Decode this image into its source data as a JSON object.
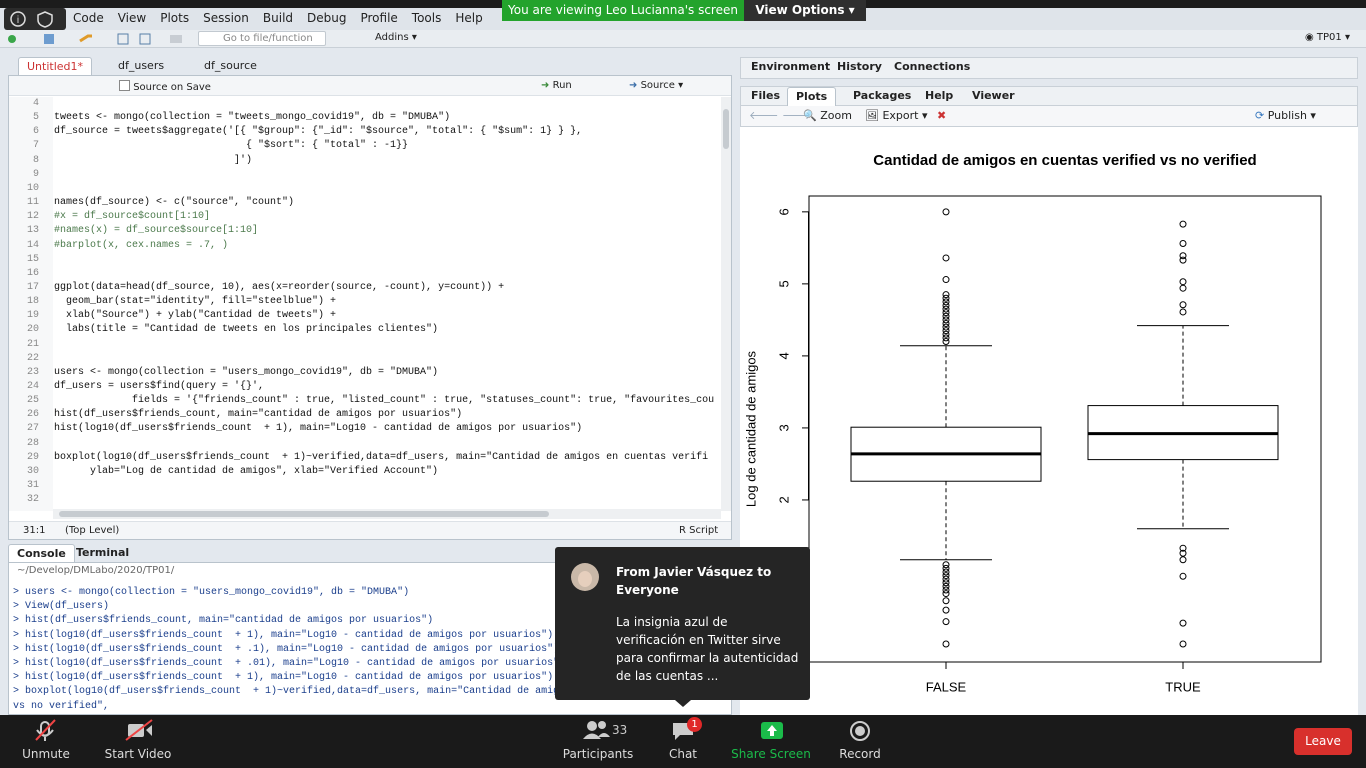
{
  "zoom_banner": {
    "viewing": "You are viewing Leo Lucianna's screen",
    "view_options": "View Options"
  },
  "menu": [
    "Code",
    "View",
    "Plots",
    "Session",
    "Build",
    "Debug",
    "Profile",
    "Tools",
    "Help"
  ],
  "toolbar": {
    "goto": "Go to file/function",
    "addins": "Addins",
    "project": "TP01"
  },
  "editor": {
    "tabs": [
      "Untitled1*",
      "df_users",
      "df_source"
    ],
    "source_on_save": "Source on Save",
    "run": "Run",
    "source": "Source",
    "lines": [
      {
        "number": 4
      },
      {
        "number": 5,
        "code": "tweets <- mongo(collection = \"tweets_mongo_covid19\", db = \"DMUBA\")"
      },
      {
        "number": 6,
        "code": "df_source = tweets$aggregate('[{ \"$group\": {\"_id\": \"$source\", \"total\": { \"$sum\": 1} } },"
      },
      {
        "number": 7,
        "code": "                                { \"$sort\": { \"total\" : -1}}"
      },
      {
        "number": 8,
        "code": "                              ]')"
      },
      {
        "number": 9
      },
      {
        "number": 10
      },
      {
        "number": 11,
        "code": "names(df_source) <- c(\"source\", \"count\")"
      },
      {
        "number": 12,
        "code": "#x = df_source$count[1:10]"
      },
      {
        "number": 13,
        "code": "#names(x) = df_source$source[1:10]"
      },
      {
        "number": 14,
        "code": "#barplot(x, cex.names = .7, )"
      },
      {
        "number": 15
      },
      {
        "number": 16
      },
      {
        "number": 17,
        "code": "ggplot(data=head(df_source, 10), aes(x=reorder(source, -count), y=count)) +"
      },
      {
        "number": 18,
        "code": "  geom_bar(stat=\"identity\", fill=\"steelblue\") +"
      },
      {
        "number": 19,
        "code": "  xlab(\"Source\") + ylab(\"Cantidad de tweets\") +"
      },
      {
        "number": 20,
        "code": "  labs(title = \"Cantidad de tweets en los principales clientes\")"
      },
      {
        "number": 21
      },
      {
        "number": 22
      },
      {
        "number": 23,
        "code": "users <- mongo(collection = \"users_mongo_covid19\", db = \"DMUBA\")"
      },
      {
        "number": 24,
        "code": "df_users = users$find(query = '{}',"
      },
      {
        "number": 25,
        "code": "             fields = '{\"friends_count\" : true, \"listed_count\" : true, \"statuses_count\": true, \"favourites_cou"
      },
      {
        "number": 26,
        "code": "hist(df_users$friends_count, main=\"cantidad de amigos por usuarios\")"
      },
      {
        "number": 27,
        "code": "hist(log10(df_users$friends_count  + 1), main=\"Log10 - cantidad de amigos por usuarios\")"
      },
      {
        "number": 28
      },
      {
        "number": 29,
        "code": "boxplot(log10(df_users$friends_count  + 1)~verified,data=df_users, main=\"Cantidad de amigos en cuentas verifi"
      },
      {
        "number": 30,
        "code": "      ylab=\"Log de cantidad de amigos\", xlab=\"Verified Account\")"
      },
      {
        "number": 31
      },
      {
        "number": 32
      }
    ],
    "status": {
      "position": "31:1",
      "scope": "(Top Level)",
      "type": "R Script"
    }
  },
  "console": {
    "tabs": [
      "Console",
      "Terminal"
    ],
    "path": "~/Develop/DMLabo/2020/TP01/",
    "lines": [
      "> users <- mongo(collection = \"users_mongo_covid19\", db = \"DMUBA\")",
      "> View(df_users)",
      "> hist(df_users$friends_count, main=\"cantidad de amigos por usuarios\")",
      "> hist(log10(df_users$friends_count  + 1), main=\"Log10 - cantidad de amigos por usuarios\")",
      "> hist(log10(df_users$friends_count  + .1), main=\"Log10 - cantidad de amigos por usuarios\")",
      "> hist(log10(df_users$friends_count  + .01), main=\"Log10 - cantidad de amigos por usuarios\")",
      "> hist(log10(df_users$friends_count  + 1), main=\"Log10 - cantidad de amigos por usuarios\")",
      "> boxplot(log10(df_users$friends_count  + 1)~verified,data=df_users, main=\"Cantidad de amigos en cuentas verified",
      "vs no verified\","
    ]
  },
  "env_pane": {
    "tabs": [
      "Environment",
      "History",
      "Connections"
    ]
  },
  "files_pane": {
    "tabs": [
      "Files",
      "Plots",
      "Packages",
      "Help",
      "Viewer"
    ],
    "zoom": "Zoom",
    "export": "Export",
    "publish": "Publish"
  },
  "chart_data": {
    "type": "boxplot",
    "title": "Cantidad de amigos en cuentas verified vs no verified",
    "y_label": "Log de cantidad de amigos",
    "categories": [
      "FALSE",
      "TRUE"
    ],
    "boxes": [
      {
        "whisker_low": 1.17,
        "q1": 2.26,
        "median": 2.64,
        "q3": 3.01,
        "whisker_high": 4.14,
        "outliers": [
          0.0,
          0.31,
          0.47,
          0.6,
          0.7,
          0.75,
          0.8,
          0.85,
          0.9,
          0.95,
          1.0,
          1.05,
          1.1,
          4.2,
          4.25,
          4.3,
          4.35,
          4.4,
          4.45,
          4.5,
          4.55,
          4.6,
          4.65,
          4.7,
          4.75,
          4.8,
          4.85,
          5.06,
          5.36,
          6.0
        ]
      },
      {
        "whisker_low": 1.6,
        "q1": 2.56,
        "median": 2.92,
        "q3": 3.31,
        "whisker_high": 4.42,
        "outliers": [
          0.0,
          0.29,
          0.94,
          1.17,
          1.26,
          1.33,
          4.61,
          4.71,
          4.94,
          5.03,
          5.33,
          5.39,
          5.56,
          5.83
        ]
      }
    ],
    "ylim": [
      -0.25,
      6.22
    ],
    "yticks": [
      2,
      3,
      4,
      5,
      6
    ]
  },
  "chat": {
    "from": "From Javier Vásquez to Everyone",
    "message": "La insignia azul de verificación en Twitter sirve para confirmar la autenticidad de las cuentas ..."
  },
  "zoom_bar": {
    "unmute": "Unmute",
    "start_video": "Start Video",
    "participants": "Participants",
    "participants_count": 33,
    "chat": "Chat",
    "chat_badge": 1,
    "share_screen": "Share Screen",
    "record": "Record",
    "leave": "Leave"
  }
}
